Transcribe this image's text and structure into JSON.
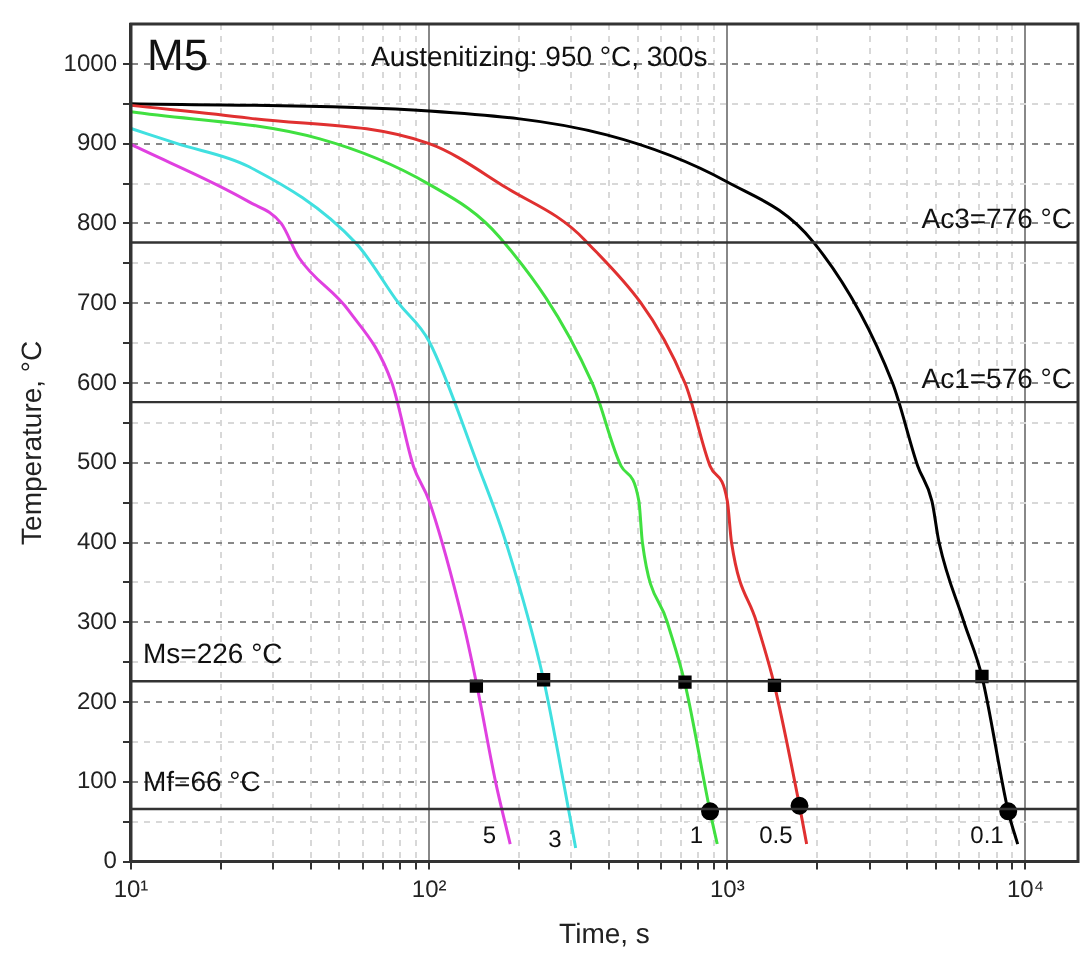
{
  "chart_data": {
    "type": "line",
    "title": "M5",
    "subtitle": "Austenitizing: 950 °C, 300s",
    "xlabel": "Time, s",
    "ylabel": "Temperature, °C",
    "log": "x",
    "grid": true,
    "legend": false,
    "xlim": [
      10,
      15000
    ],
    "ylim": [
      0,
      1050
    ],
    "xticks": [
      {
        "value": 10,
        "label": "10¹"
      },
      {
        "value": 20,
        "label": null
      },
      {
        "value": 30,
        "label": null
      },
      {
        "value": 40,
        "label": null
      },
      {
        "value": 50,
        "label": null
      },
      {
        "value": 60,
        "label": null
      },
      {
        "value": 70,
        "label": null
      },
      {
        "value": 80,
        "label": null
      },
      {
        "value": 90,
        "label": null
      },
      {
        "value": 100,
        "label": "10²"
      },
      {
        "value": 200,
        "label": null
      },
      {
        "value": 300,
        "label": null
      },
      {
        "value": 400,
        "label": null
      },
      {
        "value": 500,
        "label": null
      },
      {
        "value": 600,
        "label": null
      },
      {
        "value": 700,
        "label": null
      },
      {
        "value": 800,
        "label": null
      },
      {
        "value": 900,
        "label": null
      },
      {
        "value": 1000,
        "label": "10³"
      },
      {
        "value": 2000,
        "label": null
      },
      {
        "value": 3000,
        "label": null
      },
      {
        "value": 4000,
        "label": null
      },
      {
        "value": 5000,
        "label": null
      },
      {
        "value": 6000,
        "label": null
      },
      {
        "value": 7000,
        "label": null
      },
      {
        "value": 8000,
        "label": null
      },
      {
        "value": 9000,
        "label": null
      },
      {
        "value": 10000,
        "label": "10⁴"
      }
    ],
    "yticks": [
      0,
      {
        "value": 50,
        "label": null
      },
      100,
      {
        "value": 150,
        "label": null
      },
      200,
      {
        "value": 250,
        "label": null
      },
      300,
      {
        "value": 350,
        "label": null
      },
      400,
      {
        "value": 450,
        "label": null
      },
      500,
      {
        "value": 550,
        "label": null
      },
      600,
      {
        "value": 650,
        "label": null
      },
      700,
      {
        "value": 750,
        "label": null
      },
      800,
      {
        "value": 850,
        "label": null
      },
      900,
      {
        "value": 950,
        "label": null
      },
      1000
    ],
    "ref_lines": [
      {
        "axis": "y",
        "value": 776,
        "label": "Ac3=776 °C",
        "color": "#333333"
      },
      {
        "axis": "y",
        "value": 576,
        "label": "Ac1=576 °C",
        "color": "#333333"
      },
      {
        "axis": "y",
        "value": 226,
        "label": "Ms=226 °C",
        "color": "#333333"
      },
      {
        "axis": "y",
        "value": 66,
        "label": "Mf=66 °C",
        "color": "#333333"
      }
    ],
    "series": [
      {
        "name": "5",
        "color": "#e040e0",
        "x": [
          10,
          24.9,
          31.9,
          36.6,
          53.9,
          75,
          88.5,
          100,
          130,
          144,
          167,
          187
        ],
        "values": [
          899,
          827,
          800,
          757,
          690,
          600,
          496,
          452,
          300,
          224,
          100,
          22
        ]
      },
      {
        "name": "3",
        "color": "#40e0e0",
        "x": [
          10,
          14.3,
          24.9,
          56.9,
          79,
          100,
          146,
          181,
          242,
          282,
          310
        ],
        "values": [
          919,
          900,
          871,
          775,
          700,
          652,
          496,
          400,
          228,
          100,
          17
        ]
      },
      {
        "name": "1",
        "color": "#40e040",
        "x": [
          10,
          43,
          100,
          172,
          352,
          440,
          505,
          519,
          629,
          721,
          875,
          925
        ],
        "values": [
          940,
          906,
          849,
          783,
          600,
          496,
          452,
          400,
          300,
          223,
          63,
          22
        ]
      },
      {
        "name": "0.5",
        "color": "#e03030",
        "x": [
          10,
          24.9,
          100,
          181,
          333,
          721,
          875,
          1000,
          1033,
          1253,
          1439,
          1746,
          1845
        ],
        "values": [
          948,
          932,
          900,
          845,
          779,
          600,
          496,
          452,
          400,
          300,
          221,
          70,
          22
        ]
      },
      {
        "name": "0.1",
        "color": "#000000",
        "x": [
          10,
          100,
          394,
          1000,
          1950,
          3581,
          4350,
          4855,
          5130,
          6220,
          7145,
          8750,
          9415
        ],
        "values": [
          950,
          941,
          911,
          852,
          776,
          600,
          496,
          452,
          400,
          300,
          232,
          63,
          22
        ]
      },
      {
        "type": "scatter",
        "marker": "square",
        "color": "#000000",
        "x": [
          144,
          242,
          721,
          1439,
          7145
        ],
        "values": [
          220,
          228,
          225,
          221,
          232
        ]
      },
      {
        "type": "scatter",
        "marker": "circle",
        "color": "#000000",
        "x": [
          875,
          1746,
          8750
        ],
        "values": [
          63,
          70,
          63
        ]
      }
    ]
  }
}
